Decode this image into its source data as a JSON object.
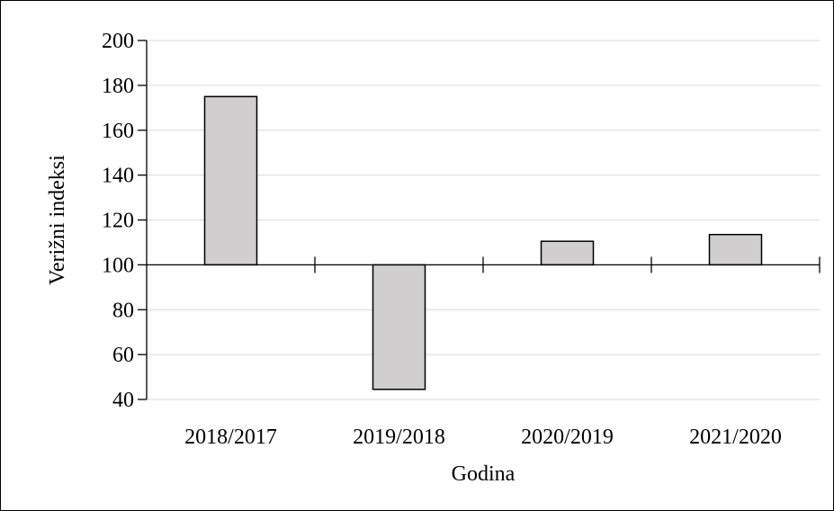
{
  "chart_data": {
    "type": "bar",
    "title": "",
    "xlabel": "Godina",
    "ylabel": "Verižni indeksi",
    "categories": [
      "2018/2017",
      "2019/2018",
      "2020/2019",
      "2021/2020"
    ],
    "values": [
      175,
      44.5,
      110.5,
      113.5
    ],
    "baseline": 100,
    "ylim": [
      40,
      200
    ],
    "yticks": [
      40,
      60,
      80,
      100,
      120,
      140,
      160,
      180,
      200
    ],
    "grid": true,
    "legend": "none",
    "bar_color": "#d0cece"
  }
}
